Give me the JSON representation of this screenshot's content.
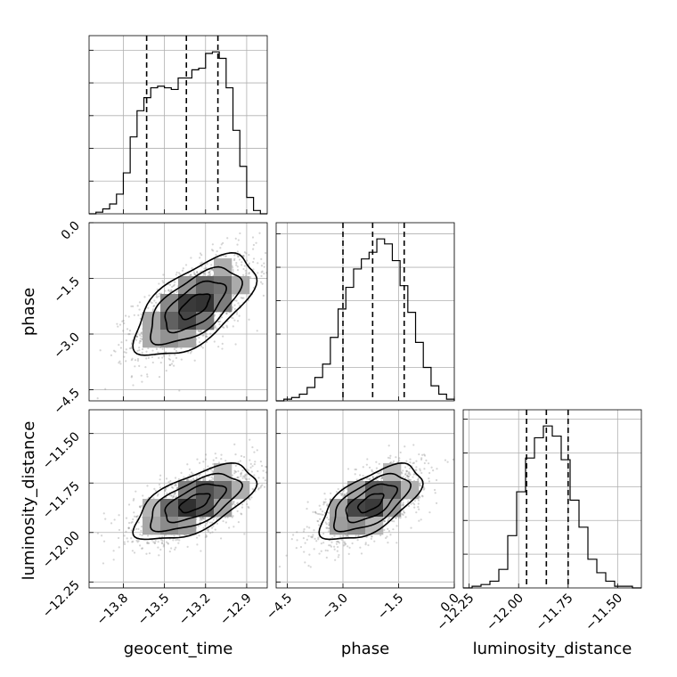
{
  "chart_data": {
    "type": "corner",
    "parameters": [
      "geocent_time",
      "phase",
      "luminosity_distance"
    ],
    "axis_labels": {
      "geocent_time": "geocent_time",
      "phase": "phase",
      "luminosity_distance": "luminosity_distance"
    },
    "ranges": {
      "geocent_time": [
        -14.05,
        -12.75
      ],
      "phase": [
        -4.8,
        0.0
      ],
      "luminosity_distance": [
        -12.28,
        -11.38
      ]
    },
    "ticks": {
      "geocent_time": [
        "-13.8",
        "-13.5",
        "-13.2",
        "-12.9"
      ],
      "phase": [
        "-4.5",
        "-3.0",
        "-1.5",
        "0.0"
      ],
      "luminosity_distance": [
        "-12.25",
        "-12.00",
        "-11.75",
        "-11.50"
      ]
    },
    "hist_quantiles": {
      "geocent_time": [
        -13.63,
        -13.34,
        -13.11
      ],
      "phase": [
        -3.0,
        -2.2,
        -1.35
      ],
      "luminosity_distance": [
        -11.96,
        -11.86,
        -11.75
      ]
    },
    "histograms": {
      "geocent_time": [
        0,
        1,
        3,
        6,
        12,
        25,
        47,
        63,
        71,
        77,
        78,
        77,
        76,
        83,
        83,
        88,
        89,
        98,
        99,
        95,
        77,
        51,
        29,
        10,
        2,
        0
      ],
      "phase": [
        0,
        1,
        2,
        4,
        8,
        14,
        22,
        38,
        55,
        68,
        79,
        85,
        89,
        97,
        94,
        84,
        69,
        53,
        35,
        20,
        9,
        4,
        1
      ],
      "luminosity_distance": [
        0,
        1,
        2,
        4,
        11,
        31,
        57,
        77,
        89,
        96,
        90,
        76,
        52,
        36,
        17,
        9,
        4,
        1,
        1,
        0
      ]
    },
    "grid": true,
    "scatter_color": "#888888",
    "density_color": "#000000"
  }
}
